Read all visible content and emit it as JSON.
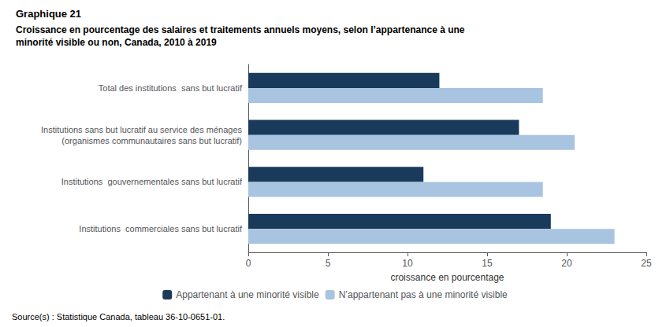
{
  "chart_data": {
    "type": "bar",
    "orientation": "horizontal",
    "title": "Graphique 21",
    "subtitle": "Croissance en pourcentage des salaires et traitements annuels moyens, selon l’appartenance à une\nminorité visible ou non, Canada, 2010 à 2019",
    "categories": [
      "Institutions  commerciales sans but lucratif",
      "Institutions  gouvernementales sans but lucratif",
      "Institutions sans but lucratif au service des ménages\n(organismes communautaires sans but lucratif)",
      "Total des institutions  sans but lucratif"
    ],
    "series": [
      {
        "name": "Appartenant à une minorité visible",
        "color": "#1a3a5c",
        "values": [
          19.0,
          11.0,
          17.0,
          12.0
        ]
      },
      {
        "name": "N’appartenant pas à une minorité visible",
        "color": "#a8c4e0",
        "values": [
          23.0,
          18.5,
          20.5,
          18.5
        ]
      }
    ],
    "xlabel": "croissance en pourcentage",
    "xlim": [
      0,
      25
    ],
    "xticks": [
      0,
      5,
      10,
      15,
      20,
      25
    ],
    "grid": false,
    "legend": "bottom",
    "annotations": [
      "Source(s) : Statistique Canada, tableau 36-10-0651-01."
    ]
  }
}
